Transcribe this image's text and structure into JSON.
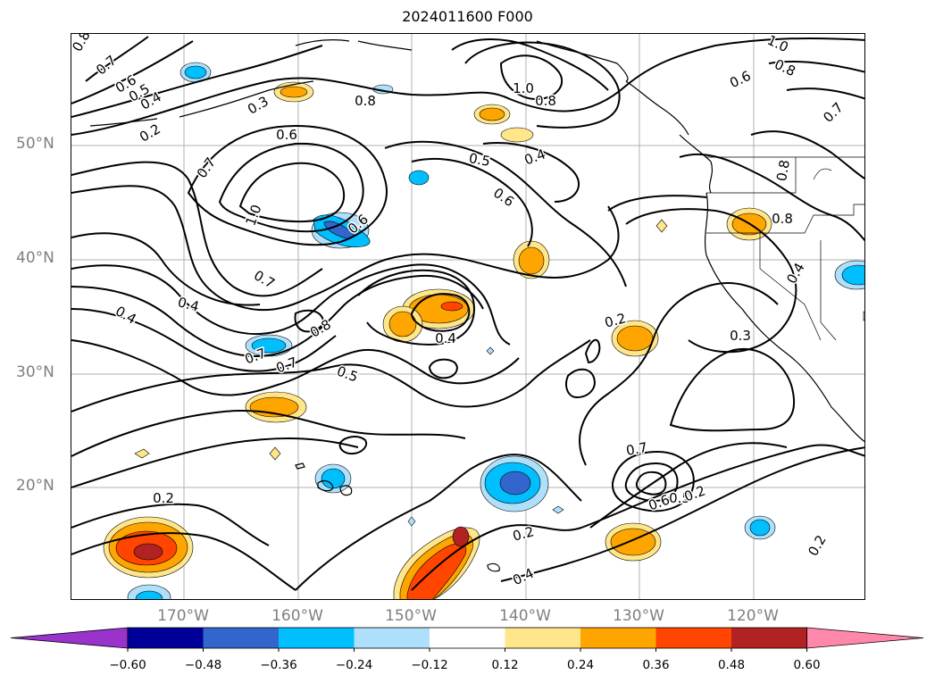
{
  "title": "2024011600 F000",
  "latitude_labels": [
    "50°N",
    "40°N",
    "30°N",
    "20°N"
  ],
  "longitude_labels": [
    "170°W",
    "160°W",
    "150°W",
    "140°W",
    "130°W",
    "120°W"
  ],
  "contour_labels": [
    "0.8",
    "0.7",
    "0.6",
    "0.5",
    "0.4",
    "0.2",
    "0.3",
    "0.8",
    "0.6",
    "1.0",
    "0.8",
    "1.0",
    "0.8",
    "0.6",
    "0.7",
    "0.8",
    "0.5",
    "0.4",
    "0.6",
    "0.6",
    "1.0",
    "0.7",
    "0.7",
    "0.4",
    "0.4",
    "0.7",
    "0.8",
    "0.4",
    "0.2",
    "0.3",
    "0.5",
    "0.7",
    "0.4",
    "0.2",
    "0.2",
    "0.4",
    "0.7",
    "0.6",
    "0.5",
    "0.2",
    "0.2",
    "0.8"
  ],
  "colorbar": {
    "ticks": [
      "−0.60",
      "−0.48",
      "−0.36",
      "−0.24",
      "−0.12",
      "0.12",
      "0.24",
      "0.36",
      "0.48",
      "0.60"
    ],
    "colors": [
      "#9933cc",
      "#000099",
      "#3366cc",
      "#00bfff",
      "#aee0fb",
      "#ffffff",
      "#ffe68a",
      "#ffa500",
      "#ff4500",
      "#b22222",
      "#ff88aa"
    ]
  },
  "map_colors": {
    "contour": "#000000",
    "coastline": "#000000",
    "grid": "#b0b0b0"
  }
}
